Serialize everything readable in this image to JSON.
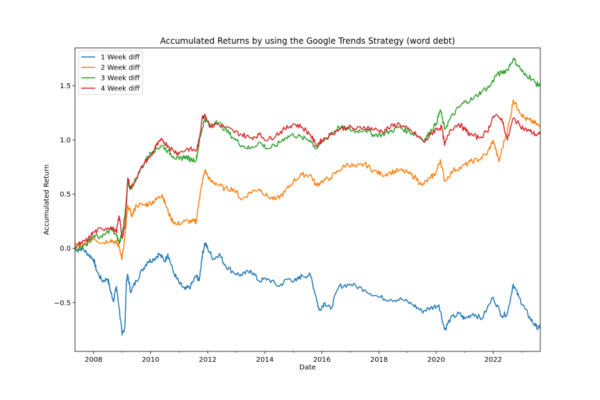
{
  "chart_data": {
    "type": "line",
    "title": "Accumulated Returns by using the Google Trends Strategy (word debt)",
    "xlabel": "Date",
    "ylabel": "Accumulated Return",
    "xlim": [
      2007.35,
      2023.65
    ],
    "ylim": [
      -0.95,
      1.85
    ],
    "x_ticks": [
      2008,
      2010,
      2012,
      2014,
      2016,
      2018,
      2020,
      2022
    ],
    "x_tick_labels": [
      "2008",
      "2010",
      "2012",
      "2014",
      "2016",
      "2018",
      "2020",
      "2022"
    ],
    "y_ticks": [
      -0.5,
      0.0,
      0.5,
      1.0,
      1.5
    ],
    "y_tick_labels": [
      "−0.5",
      "0.0",
      "0.5",
      "1.0",
      "1.5"
    ],
    "grid": false,
    "legend_position": "top-left",
    "series": [
      {
        "name": "1 Week diff",
        "color": "#1f77b4",
        "points": [
          [
            2007.35,
            -0.02
          ],
          [
            2007.6,
            0.0
          ],
          [
            2007.8,
            -0.05
          ],
          [
            2008.0,
            -0.1
          ],
          [
            2008.1,
            -0.2
          ],
          [
            2008.3,
            -0.3
          ],
          [
            2008.5,
            -0.28
          ],
          [
            2008.6,
            -0.4
          ],
          [
            2008.7,
            -0.48
          ],
          [
            2008.8,
            -0.35
          ],
          [
            2008.9,
            -0.55
          ],
          [
            2009.0,
            -0.8
          ],
          [
            2009.1,
            -0.72
          ],
          [
            2009.15,
            -0.3
          ],
          [
            2009.2,
            -0.25
          ],
          [
            2009.3,
            -0.4
          ],
          [
            2009.5,
            -0.3
          ],
          [
            2009.7,
            -0.2
          ],
          [
            2009.9,
            -0.12
          ],
          [
            2010.1,
            -0.1
          ],
          [
            2010.3,
            -0.05
          ],
          [
            2010.5,
            -0.12
          ],
          [
            2010.6,
            -0.05
          ],
          [
            2010.8,
            -0.22
          ],
          [
            2011.0,
            -0.32
          ],
          [
            2011.2,
            -0.38
          ],
          [
            2011.4,
            -0.35
          ],
          [
            2011.6,
            -0.25
          ],
          [
            2011.7,
            -0.3
          ],
          [
            2011.8,
            -0.08
          ],
          [
            2011.9,
            0.05
          ],
          [
            2012.0,
            0.0
          ],
          [
            2012.2,
            -0.1
          ],
          [
            2012.4,
            -0.05
          ],
          [
            2012.6,
            -0.15
          ],
          [
            2012.9,
            -0.22
          ],
          [
            2013.2,
            -0.25
          ],
          [
            2013.5,
            -0.2
          ],
          [
            2013.8,
            -0.3
          ],
          [
            2014.1,
            -0.28
          ],
          [
            2014.5,
            -0.35
          ],
          [
            2014.8,
            -0.28
          ],
          [
            2015.1,
            -0.3
          ],
          [
            2015.3,
            -0.25
          ],
          [
            2015.6,
            -0.25
          ],
          [
            2015.8,
            -0.45
          ],
          [
            2015.9,
            -0.57
          ],
          [
            2016.1,
            -0.5
          ],
          [
            2016.3,
            -0.56
          ],
          [
            2016.6,
            -0.35
          ],
          [
            2017.0,
            -0.33
          ],
          [
            2017.5,
            -0.38
          ],
          [
            2018.0,
            -0.45
          ],
          [
            2018.4,
            -0.47
          ],
          [
            2018.8,
            -0.47
          ],
          [
            2019.2,
            -0.52
          ],
          [
            2019.5,
            -0.58
          ],
          [
            2019.8,
            -0.55
          ],
          [
            2020.1,
            -0.52
          ],
          [
            2020.3,
            -0.75
          ],
          [
            2020.5,
            -0.65
          ],
          [
            2020.8,
            -0.6
          ],
          [
            2021.0,
            -0.65
          ],
          [
            2021.3,
            -0.6
          ],
          [
            2021.6,
            -0.65
          ],
          [
            2022.0,
            -0.45
          ],
          [
            2022.3,
            -0.62
          ],
          [
            2022.5,
            -0.6
          ],
          [
            2022.7,
            -0.33
          ],
          [
            2022.9,
            -0.45
          ],
          [
            2023.1,
            -0.55
          ],
          [
            2023.3,
            -0.65
          ],
          [
            2023.5,
            -0.72
          ],
          [
            2023.65,
            -0.74
          ]
        ]
      },
      {
        "name": "2 Week diff",
        "color": "#ff7f0e",
        "points": [
          [
            2007.35,
            0.05
          ],
          [
            2007.6,
            0.02
          ],
          [
            2007.8,
            0.05
          ],
          [
            2008.0,
            0.1
          ],
          [
            2008.3,
            0.05
          ],
          [
            2008.6,
            0.08
          ],
          [
            2008.8,
            0.05
          ],
          [
            2008.9,
            0.02
          ],
          [
            2009.0,
            -0.1
          ],
          [
            2009.1,
            0.1
          ],
          [
            2009.2,
            0.4
          ],
          [
            2009.35,
            0.3
          ],
          [
            2009.5,
            0.4
          ],
          [
            2009.8,
            0.4
          ],
          [
            2010.0,
            0.42
          ],
          [
            2010.2,
            0.45
          ],
          [
            2010.4,
            0.5
          ],
          [
            2010.5,
            0.42
          ],
          [
            2010.7,
            0.28
          ],
          [
            2010.9,
            0.22
          ],
          [
            2011.2,
            0.25
          ],
          [
            2011.5,
            0.25
          ],
          [
            2011.6,
            0.25
          ],
          [
            2011.7,
            0.45
          ],
          [
            2011.8,
            0.6
          ],
          [
            2011.9,
            0.72
          ],
          [
            2012.1,
            0.62
          ],
          [
            2012.3,
            0.6
          ],
          [
            2012.6,
            0.55
          ],
          [
            2012.9,
            0.55
          ],
          [
            2013.2,
            0.45
          ],
          [
            2013.5,
            0.52
          ],
          [
            2013.8,
            0.55
          ],
          [
            2014.1,
            0.48
          ],
          [
            2014.4,
            0.45
          ],
          [
            2014.7,
            0.52
          ],
          [
            2015.0,
            0.62
          ],
          [
            2015.3,
            0.68
          ],
          [
            2015.6,
            0.68
          ],
          [
            2015.8,
            0.58
          ],
          [
            2016.0,
            0.62
          ],
          [
            2016.3,
            0.65
          ],
          [
            2016.6,
            0.72
          ],
          [
            2016.9,
            0.78
          ],
          [
            2017.2,
            0.75
          ],
          [
            2017.5,
            0.78
          ],
          [
            2017.8,
            0.72
          ],
          [
            2018.1,
            0.68
          ],
          [
            2018.4,
            0.7
          ],
          [
            2018.7,
            0.72
          ],
          [
            2019.0,
            0.7
          ],
          [
            2019.3,
            0.65
          ],
          [
            2019.5,
            0.58
          ],
          [
            2019.8,
            0.65
          ],
          [
            2020.0,
            0.7
          ],
          [
            2020.15,
            0.82
          ],
          [
            2020.3,
            0.62
          ],
          [
            2020.6,
            0.72
          ],
          [
            2020.9,
            0.75
          ],
          [
            2021.2,
            0.8
          ],
          [
            2021.5,
            0.82
          ],
          [
            2021.8,
            0.88
          ],
          [
            2022.0,
            1.0
          ],
          [
            2022.2,
            0.8
          ],
          [
            2022.4,
            1.0
          ],
          [
            2022.6,
            1.2
          ],
          [
            2022.7,
            1.37
          ],
          [
            2022.9,
            1.28
          ],
          [
            2023.1,
            1.2
          ],
          [
            2023.3,
            1.18
          ],
          [
            2023.5,
            1.15
          ],
          [
            2023.65,
            1.12
          ]
        ]
      },
      {
        "name": "3 Week diff",
        "color": "#2ca02c",
        "points": [
          [
            2007.35,
            0.0
          ],
          [
            2007.6,
            0.02
          ],
          [
            2007.8,
            0.05
          ],
          [
            2008.0,
            0.12
          ],
          [
            2008.3,
            0.1
          ],
          [
            2008.6,
            0.18
          ],
          [
            2008.8,
            0.12
          ],
          [
            2008.9,
            0.05
          ],
          [
            2009.0,
            0.15
          ],
          [
            2009.1,
            0.3
          ],
          [
            2009.2,
            0.6
          ],
          [
            2009.3,
            0.55
          ],
          [
            2009.5,
            0.65
          ],
          [
            2009.8,
            0.8
          ],
          [
            2010.0,
            0.88
          ],
          [
            2010.2,
            0.92
          ],
          [
            2010.4,
            0.95
          ],
          [
            2010.6,
            0.9
          ],
          [
            2010.8,
            0.85
          ],
          [
            2011.0,
            0.82
          ],
          [
            2011.2,
            0.85
          ],
          [
            2011.4,
            0.82
          ],
          [
            2011.6,
            0.82
          ],
          [
            2011.7,
            0.98
          ],
          [
            2011.8,
            1.1
          ],
          [
            2011.9,
            1.2
          ],
          [
            2012.1,
            1.12
          ],
          [
            2012.3,
            1.18
          ],
          [
            2012.6,
            1.1
          ],
          [
            2012.9,
            1.02
          ],
          [
            2013.2,
            0.95
          ],
          [
            2013.5,
            0.92
          ],
          [
            2013.8,
            0.98
          ],
          [
            2014.1,
            0.92
          ],
          [
            2014.4,
            0.95
          ],
          [
            2014.7,
            1.02
          ],
          [
            2015.0,
            1.05
          ],
          [
            2015.3,
            1.02
          ],
          [
            2015.6,
            1.0
          ],
          [
            2015.8,
            0.92
          ],
          [
            2016.0,
            0.98
          ],
          [
            2016.3,
            1.05
          ],
          [
            2016.6,
            1.12
          ],
          [
            2016.9,
            1.1
          ],
          [
            2017.2,
            1.08
          ],
          [
            2017.5,
            1.1
          ],
          [
            2017.8,
            1.05
          ],
          [
            2018.1,
            1.05
          ],
          [
            2018.4,
            1.08
          ],
          [
            2018.7,
            1.12
          ],
          [
            2019.0,
            1.08
          ],
          [
            2019.3,
            1.05
          ],
          [
            2019.6,
            1.0
          ],
          [
            2019.8,
            1.08
          ],
          [
            2020.0,
            1.15
          ],
          [
            2020.15,
            1.28
          ],
          [
            2020.3,
            1.1
          ],
          [
            2020.5,
            1.2
          ],
          [
            2020.8,
            1.3
          ],
          [
            2021.0,
            1.35
          ],
          [
            2021.3,
            1.38
          ],
          [
            2021.6,
            1.45
          ],
          [
            2021.9,
            1.5
          ],
          [
            2022.1,
            1.6
          ],
          [
            2022.3,
            1.62
          ],
          [
            2022.5,
            1.65
          ],
          [
            2022.7,
            1.75
          ],
          [
            2022.9,
            1.68
          ],
          [
            2023.1,
            1.6
          ],
          [
            2023.3,
            1.58
          ],
          [
            2023.5,
            1.52
          ],
          [
            2023.65,
            1.5
          ]
        ]
      },
      {
        "name": "4 Week diff",
        "color": "#d62728",
        "points": [
          [
            2007.35,
            0.02
          ],
          [
            2007.6,
            0.05
          ],
          [
            2007.8,
            0.08
          ],
          [
            2008.0,
            0.15
          ],
          [
            2008.3,
            0.18
          ],
          [
            2008.6,
            0.2
          ],
          [
            2008.8,
            0.15
          ],
          [
            2008.9,
            0.3
          ],
          [
            2009.0,
            0.1
          ],
          [
            2009.1,
            0.2
          ],
          [
            2009.2,
            0.65
          ],
          [
            2009.3,
            0.55
          ],
          [
            2009.5,
            0.65
          ],
          [
            2009.8,
            0.8
          ],
          [
            2010.0,
            0.85
          ],
          [
            2010.2,
            0.95
          ],
          [
            2010.4,
            1.0
          ],
          [
            2010.6,
            0.95
          ],
          [
            2010.8,
            0.9
          ],
          [
            2011.0,
            0.88
          ],
          [
            2011.3,
            0.92
          ],
          [
            2011.6,
            0.9
          ],
          [
            2011.7,
            1.0
          ],
          [
            2011.8,
            1.2
          ],
          [
            2011.9,
            1.24
          ],
          [
            2012.1,
            1.12
          ],
          [
            2012.3,
            1.15
          ],
          [
            2012.6,
            1.12
          ],
          [
            2012.9,
            1.08
          ],
          [
            2013.2,
            1.05
          ],
          [
            2013.5,
            1.02
          ],
          [
            2013.8,
            1.05
          ],
          [
            2014.1,
            1.0
          ],
          [
            2014.4,
            1.05
          ],
          [
            2014.7,
            1.1
          ],
          [
            2015.0,
            1.15
          ],
          [
            2015.3,
            1.12
          ],
          [
            2015.6,
            1.05
          ],
          [
            2015.8,
            0.95
          ],
          [
            2016.0,
            1.0
          ],
          [
            2016.3,
            1.05
          ],
          [
            2016.6,
            1.1
          ],
          [
            2016.9,
            1.12
          ],
          [
            2017.2,
            1.1
          ],
          [
            2017.5,
            1.12
          ],
          [
            2017.8,
            1.1
          ],
          [
            2018.1,
            1.08
          ],
          [
            2018.4,
            1.12
          ],
          [
            2018.7,
            1.15
          ],
          [
            2019.0,
            1.1
          ],
          [
            2019.3,
            1.05
          ],
          [
            2019.6,
            0.98
          ],
          [
            2019.8,
            1.05
          ],
          [
            2020.0,
            1.1
          ],
          [
            2020.2,
            1.12
          ],
          [
            2020.3,
            0.95
          ],
          [
            2020.5,
            1.1
          ],
          [
            2020.8,
            1.15
          ],
          [
            2021.0,
            1.1
          ],
          [
            2021.2,
            1.05
          ],
          [
            2021.5,
            1.02
          ],
          [
            2021.8,
            1.08
          ],
          [
            2022.0,
            1.22
          ],
          [
            2022.3,
            1.2
          ],
          [
            2022.5,
            1.0
          ],
          [
            2022.7,
            1.2
          ],
          [
            2022.9,
            1.15
          ],
          [
            2023.1,
            1.1
          ],
          [
            2023.3,
            1.08
          ],
          [
            2023.5,
            1.05
          ],
          [
            2023.65,
            1.05
          ]
        ]
      }
    ]
  }
}
